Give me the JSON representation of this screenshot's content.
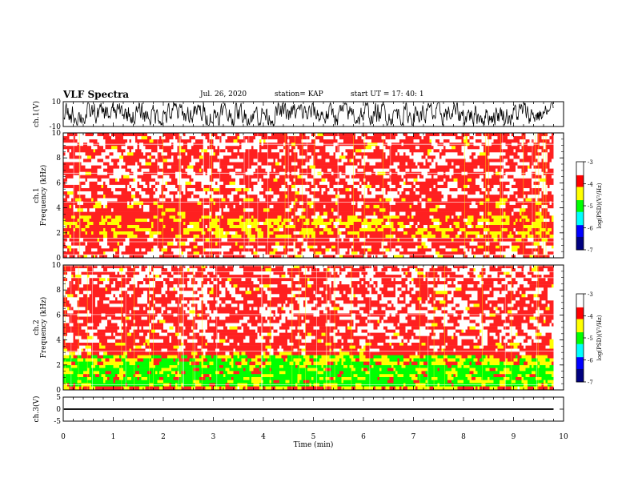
{
  "header": {
    "title": "VLF Spectra",
    "date": "Jul. 26, 2020",
    "station": "station= KAP",
    "start_ut": "start  UT =   17: 40: 1"
  },
  "colors": {
    "spec_high": "#ff2020",
    "spec_mid": "#ffff00",
    "spec_low": "#00ff00",
    "trace": "#000000"
  },
  "chart_data": [
    {
      "type": "line",
      "name": "ch1-waveform",
      "ylabel": "ch.1(V)",
      "ylim": [
        -10,
        10
      ],
      "yticks": [
        "10",
        "-10"
      ],
      "xlim": [
        0,
        10
      ],
      "note_series": "noisy waveform, amplitude approx +/-8 V"
    },
    {
      "type": "heatmap",
      "name": "ch1-spectrogram",
      "ylabel": "ch.1\nFrequency (kHz)",
      "ylim": [
        0,
        10
      ],
      "yticks": [
        "0",
        "2",
        "4",
        "6",
        "8",
        "10"
      ],
      "xlim": [
        0,
        10
      ],
      "data_end_x": 9.8,
      "bands": [
        {
          "from": 0.0,
          "to": 1.0,
          "level": "mixed"
        },
        {
          "from": 1.0,
          "to": 1.6,
          "level": "high"
        },
        {
          "from": 1.6,
          "to": 3.4,
          "level": "mid-high"
        },
        {
          "from": 3.4,
          "to": 4.8,
          "level": "high"
        },
        {
          "from": 4.8,
          "to": 10.0,
          "level": "mixed-high"
        }
      ],
      "colorbar": {
        "label": "log(PSD)(V²/Hz)",
        "ticks": [
          "-3",
          "-4",
          "-5",
          "-6",
          "-7"
        ],
        "range": [
          -7,
          -3
        ]
      }
    },
    {
      "type": "heatmap",
      "name": "ch2-spectrogram",
      "ylabel": "ch.2\nFrequency (kHz)",
      "ylim": [
        0,
        10
      ],
      "yticks": [
        "0",
        "2",
        "4",
        "6",
        "8",
        "10"
      ],
      "xlim": [
        0,
        10
      ],
      "data_end_x": 9.8,
      "bands": [
        {
          "from": 0.0,
          "to": 0.3,
          "level": "mid-high"
        },
        {
          "from": 0.3,
          "to": 2.0,
          "level": "low"
        },
        {
          "from": 2.0,
          "to": 2.8,
          "level": "low-mid"
        },
        {
          "from": 2.8,
          "to": 3.8,
          "level": "high"
        },
        {
          "from": 3.8,
          "to": 10.0,
          "level": "mixed-high"
        }
      ],
      "colorbar": {
        "label": "log(PSD)(V²/Hz)",
        "ticks": [
          "-3",
          "-4",
          "-5",
          "-6",
          "-7"
        ],
        "range": [
          -7,
          -3
        ]
      }
    },
    {
      "type": "line",
      "name": "ch3-waveform",
      "ylabel": "ch.3(V)",
      "ylim": [
        -5,
        5
      ],
      "yticks": [
        "5",
        "0",
        "-5"
      ],
      "xlim": [
        0,
        10
      ],
      "note_series": "dense signal near 0 V"
    }
  ],
  "xaxis": {
    "label": "Time (min)",
    "ticks": [
      "0",
      "1",
      "2",
      "3",
      "4",
      "5",
      "6",
      "7",
      "8",
      "9",
      "10"
    ]
  }
}
